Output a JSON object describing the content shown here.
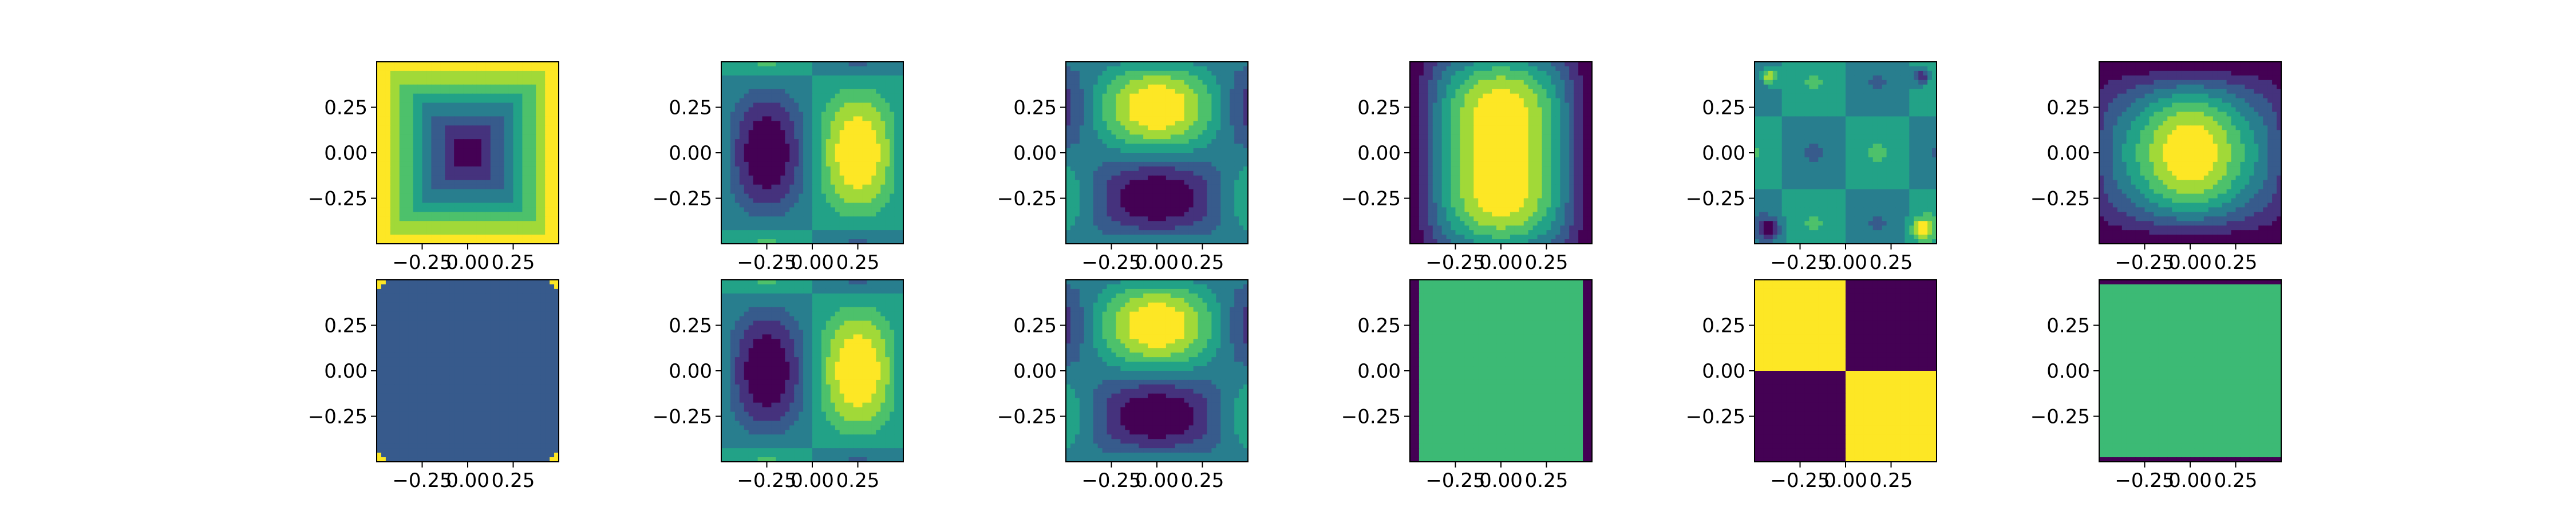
{
  "chart_data": {
    "type": "heatmap",
    "layout": {
      "rows": 2,
      "cols": 6
    },
    "xlim": [
      -0.5,
      0.5
    ],
    "ylim": [
      -0.5,
      0.5
    ],
    "xticks": [
      -0.25,
      0.0,
      0.25
    ],
    "yticks": [
      -0.25,
      0.0,
      0.25
    ],
    "xtick_labels": [
      "−0.25",
      "0.00",
      "0.25"
    ],
    "ytick_labels": [
      "−0.25",
      "0.00",
      "0.25"
    ],
    "colormap": "viridis",
    "filled_contour_levels": 8,
    "panels": [
      {
        "row": 0,
        "col": 0,
        "pattern": "bowl"
      },
      {
        "row": 0,
        "col": 1,
        "pattern": "x-dipole"
      },
      {
        "row": 0,
        "col": 2,
        "pattern": "y-saddle"
      },
      {
        "row": 0,
        "col": 3,
        "pattern": "central-peak-tall"
      },
      {
        "row": 0,
        "col": 4,
        "pattern": "corner-quadrupole"
      },
      {
        "row": 0,
        "col": 5,
        "pattern": "central-peak-wide"
      },
      {
        "row": 1,
        "col": 0,
        "pattern": "corner-spikes"
      },
      {
        "row": 1,
        "col": 1,
        "pattern": "x-dipole"
      },
      {
        "row": 1,
        "col": 2,
        "pattern": "y-saddle"
      },
      {
        "row": 1,
        "col": 3,
        "pattern": "flat-side-walls"
      },
      {
        "row": 1,
        "col": 4,
        "pattern": "checkerboard"
      },
      {
        "row": 1,
        "col": 5,
        "pattern": "flat-top-bottom-walls"
      }
    ]
  }
}
